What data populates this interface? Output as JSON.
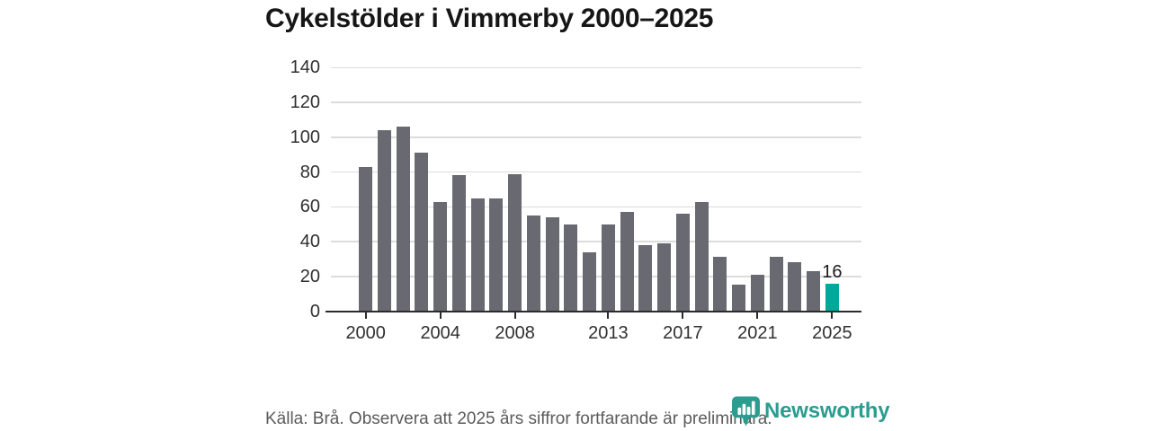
{
  "title": "Cykelstölder i Vimmerby 2000–2025",
  "footer": {
    "source_note": "Källa: Brå. Observera att 2025 års siffror fortfarande är preliminära.",
    "brand": "Newsworthy"
  },
  "colors": {
    "bar": "#696971",
    "highlight": "#00a79b",
    "grid": "#dcdcdc",
    "axis": "#2b2b2b",
    "title_text": "#161616",
    "tick_text": "#303030",
    "value_label_text": "#1a1a1a",
    "footer_text": "#5b5b5b",
    "brand": "#2a9c90",
    "background": "#ffffff"
  },
  "chart_data": {
    "type": "bar",
    "title": "Cykelstölder i Vimmerby 2000–2025",
    "x": [
      2000,
      2001,
      2002,
      2003,
      2004,
      2005,
      2006,
      2007,
      2008,
      2009,
      2010,
      2011,
      2012,
      2013,
      2014,
      2015,
      2016,
      2017,
      2018,
      2019,
      2020,
      2021,
      2022,
      2023,
      2024,
      2025
    ],
    "values": [
      83,
      104,
      106,
      91,
      63,
      78,
      65,
      65,
      79,
      55,
      54,
      50,
      34,
      50,
      57,
      38,
      39,
      56,
      63,
      31,
      15,
      21,
      31,
      28,
      23,
      16
    ],
    "highlight_year": 2025,
    "value_label": {
      "year": 2025,
      "text": "16"
    },
    "xticks": [
      2000,
      2004,
      2008,
      2013,
      2017,
      2021,
      2025
    ],
    "yticks": [
      0,
      20,
      40,
      60,
      80,
      100,
      120,
      140
    ],
    "ylim": [
      0,
      145
    ],
    "xlabel": "",
    "ylabel": "",
    "grid": "horizontal",
    "legend": "none"
  }
}
